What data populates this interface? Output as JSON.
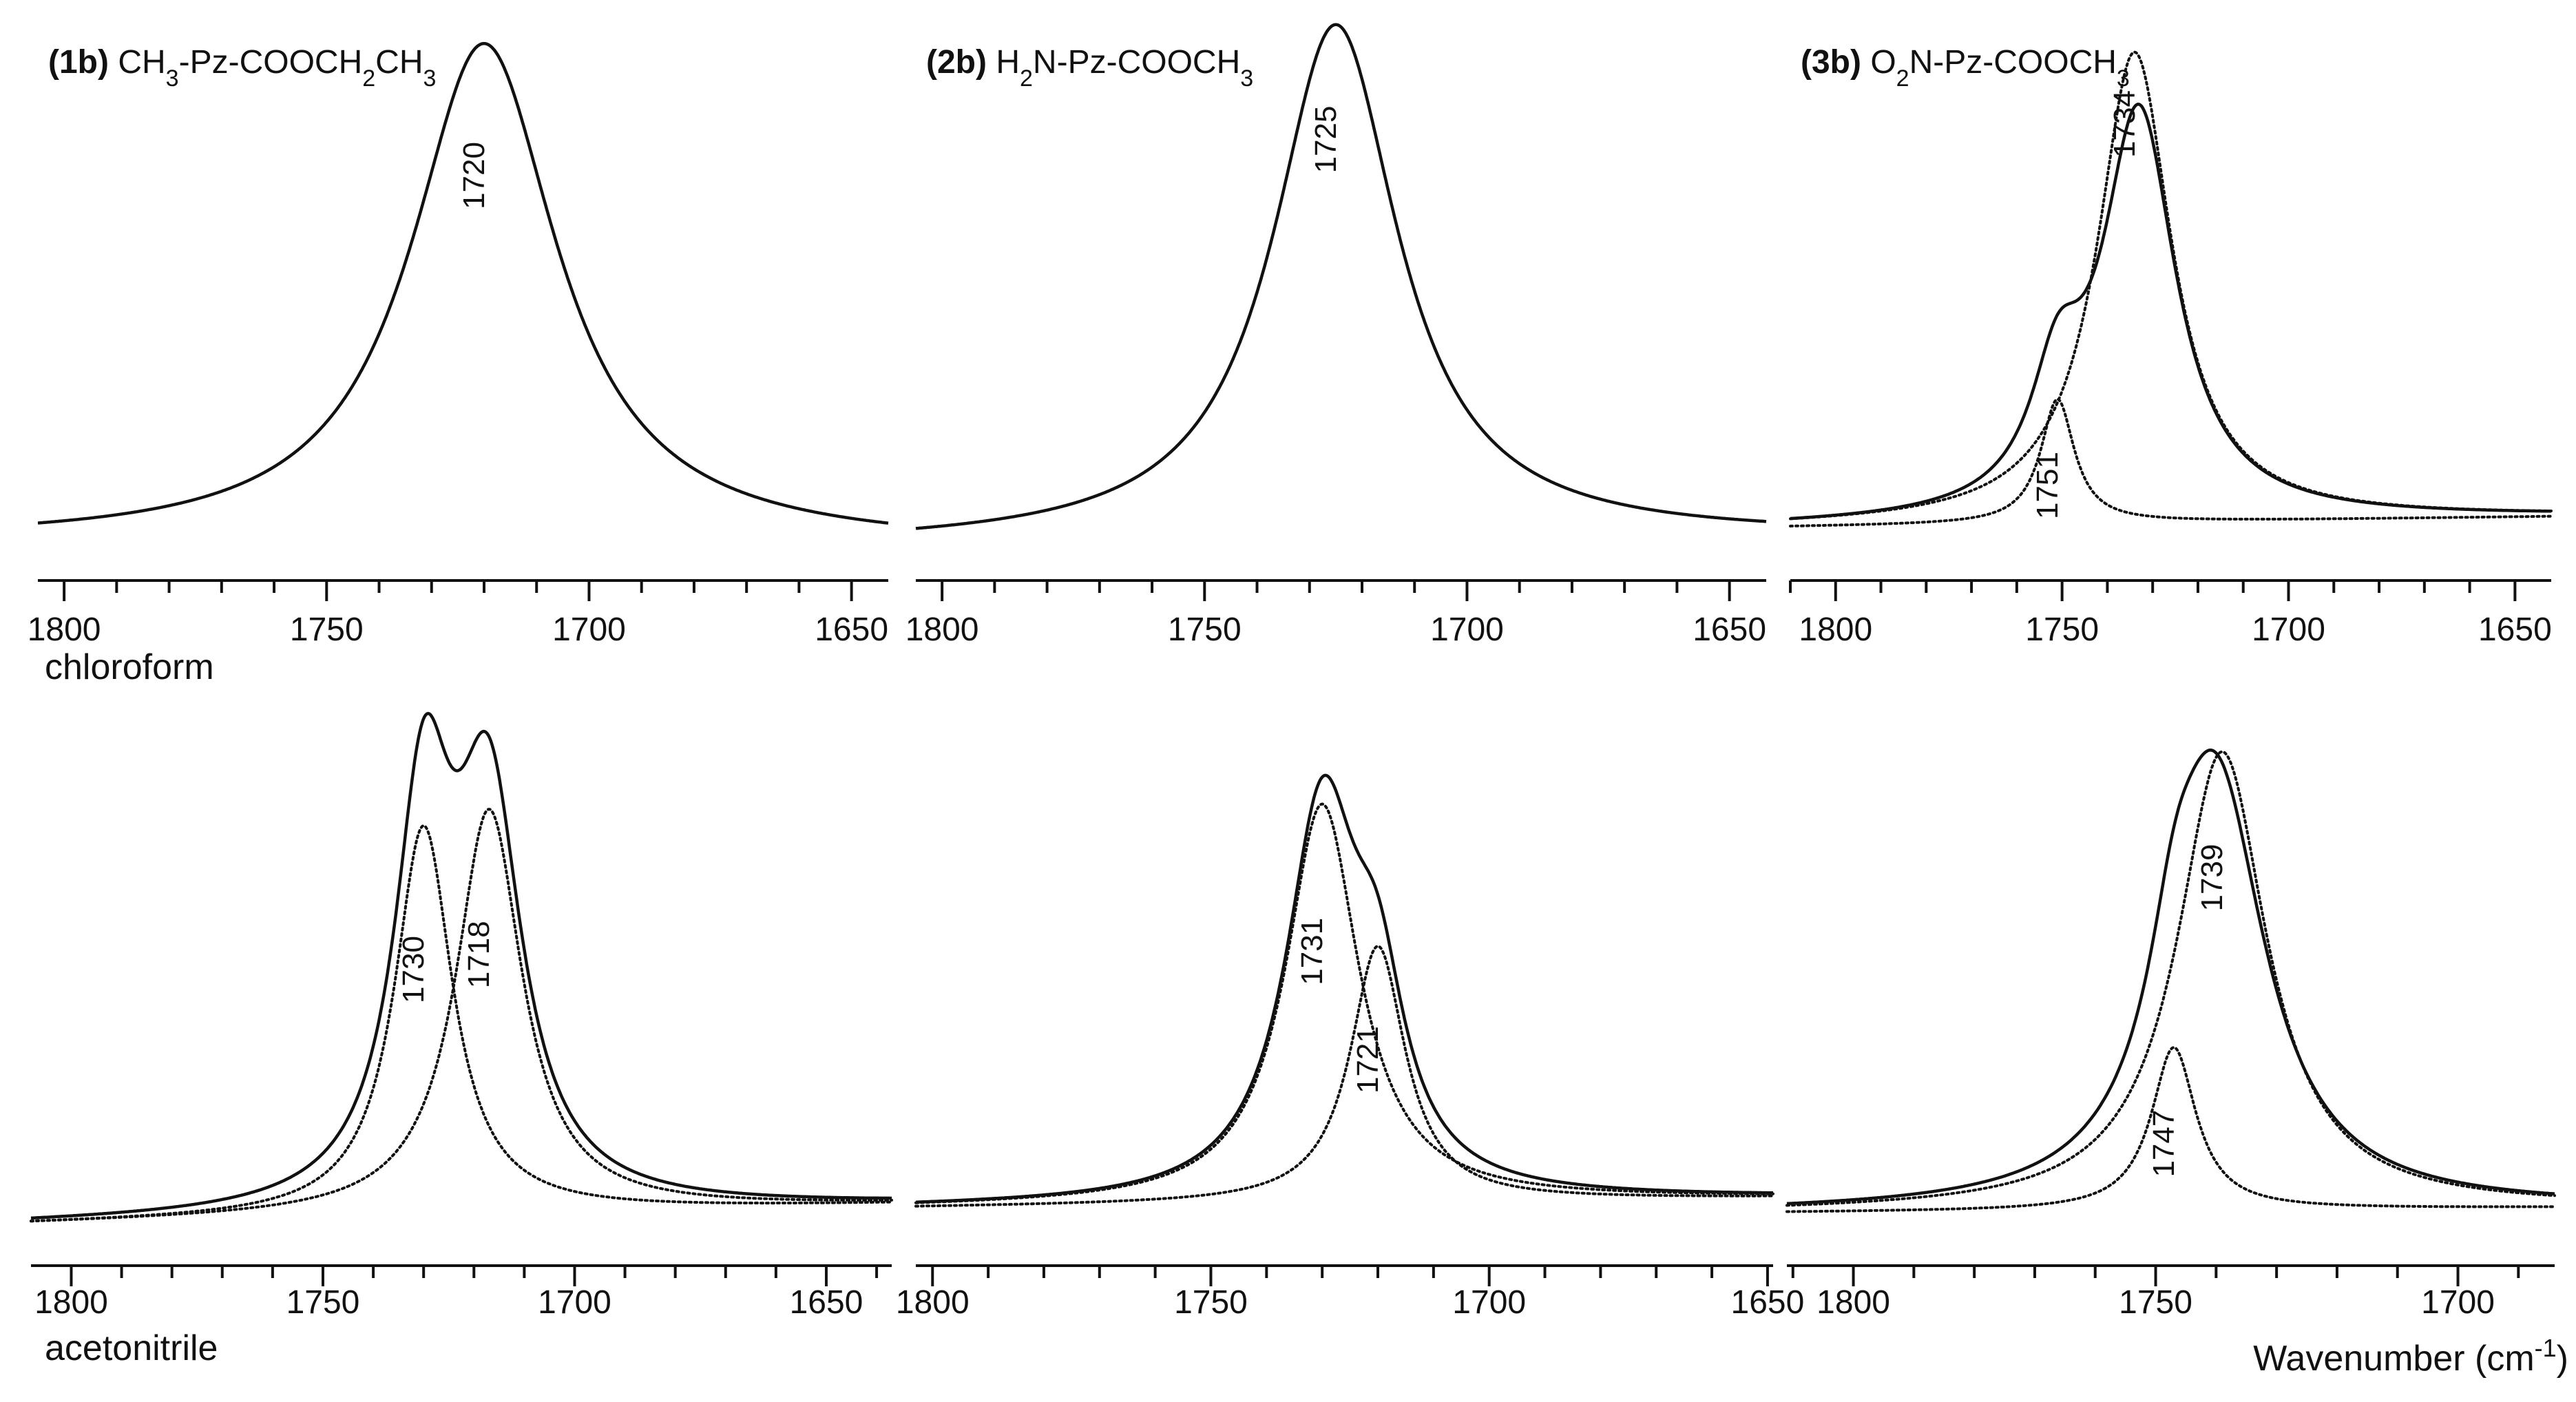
{
  "figure": {
    "row_labels": [
      "chloroform",
      "acetonitrile"
    ],
    "xaxis_label": "Wavenumber (cm",
    "xaxis_unit_sup": "-1",
    "xaxis_label_close": ")"
  },
  "chart_data": [
    {
      "type": "line",
      "row": "chloroform",
      "compound_id": "(1b)",
      "formula": [
        [
          "CH",
          ""
        ],
        [
          "3",
          "sub"
        ],
        [
          "-Pz-COOCH",
          ""
        ],
        [
          "2",
          "sub"
        ],
        [
          "CH",
          ""
        ],
        [
          "3",
          "sub"
        ]
      ],
      "xlim": [
        1805,
        1643
      ],
      "ticks": [
        1800,
        1750,
        1700,
        1650
      ],
      "baseline_left": 0.03,
      "baseline_right": 0.022,
      "series": [
        {
          "name": "spectrum",
          "style": "solid",
          "components": [
            {
              "center": 1720,
              "amp": 0.97,
              "width": 17
            }
          ]
        }
      ],
      "annotations": [
        {
          "text": "1720",
          "x": 1720,
          "y": 0.74
        }
      ]
    },
    {
      "type": "line",
      "row": "chloroform",
      "compound_id": "(2b)",
      "formula": [
        [
          "H",
          ""
        ],
        [
          "2",
          "sub"
        ],
        [
          "N-Pz-COOCH",
          ""
        ],
        [
          "3",
          "sub"
        ]
      ],
      "xlim": [
        1805,
        1643
      ],
      "ticks": [
        1800,
        1750,
        1700,
        1650
      ],
      "baseline_left": 0.025,
      "baseline_right": 0.04,
      "series": [
        {
          "name": "spectrum",
          "style": "solid",
          "components": [
            {
              "center": 1725,
              "amp": 1.0,
              "width": 14.5
            }
          ]
        }
      ],
      "annotations": [
        {
          "text": "1725",
          "x": 1725,
          "y": 0.81
        }
      ]
    },
    {
      "type": "line",
      "row": "chloroform",
      "compound_id": "(3b)",
      "formula": [
        [
          "O",
          ""
        ],
        [
          "2",
          "sub"
        ],
        [
          "N-Pz-COOCH",
          ""
        ],
        [
          "3",
          "sub"
        ]
      ],
      "xlim": [
        1810,
        1642
      ],
      "ticks": [
        1800,
        1750,
        1700,
        1650
      ],
      "baseline_left": 0.06,
      "baseline_right": 0.08,
      "series": [
        {
          "name": "sum",
          "style": "solid",
          "components": [
            {
              "center": 1733,
              "amp": 0.78,
              "width": 10
            },
            {
              "center": 1751,
              "amp": 0.22,
              "width": 7
            }
          ]
        },
        {
          "name": "component 1734",
          "style": "dotted",
          "components": [
            {
              "center": 1734,
              "amp": 0.91,
              "width": 10
            }
          ]
        },
        {
          "name": "component 1751",
          "style": "dotted",
          "components": [
            {
              "center": 1751,
              "amp": 0.24,
              "width": 4.5
            }
          ]
        }
      ],
      "annotations": [
        {
          "text": "1734",
          "x": 1734,
          "y": 0.84
        },
        {
          "text": "1751",
          "x": 1751,
          "y": 0.14
        }
      ]
    },
    {
      "type": "line",
      "row": "acetonitrile",
      "compound_id": "(1b)",
      "xlim": [
        1808,
        1637
      ],
      "ticks": [
        1800,
        1750,
        1700,
        1650
      ],
      "baseline_left": 0.01,
      "baseline_right": 0.05,
      "series": [
        {
          "name": "sum",
          "style": "solid",
          "components": [
            {
              "center": 1730,
              "amp": 0.78,
              "width": 7
            },
            {
              "center": 1717,
              "amp": 0.78,
              "width": 8
            }
          ]
        },
        {
          "name": "component 1730",
          "style": "dotted",
          "components": [
            {
              "center": 1730,
              "amp": 0.78,
              "width": 7
            }
          ]
        },
        {
          "name": "component 1718",
          "style": "dotted",
          "components": [
            {
              "center": 1717,
              "amp": 0.81,
              "width": 8
            }
          ]
        }
      ],
      "annotations": [
        {
          "text": "1730",
          "x": 1730,
          "y": 0.52
        },
        {
          "text": "1718",
          "x": 1717,
          "y": 0.55
        }
      ]
    },
    {
      "type": "line",
      "row": "acetonitrile",
      "compound_id": "(2b)",
      "xlim": [
        1803,
        1649
      ],
      "ticks": [
        1800,
        1750,
        1700,
        1650
      ],
      "baseline_left": 0.03,
      "baseline_right": 0.05,
      "series": [
        {
          "name": "sum",
          "style": "solid",
          "components": [
            {
              "center": 1730,
              "amp": 0.78,
              "width": 8
            },
            {
              "center": 1720,
              "amp": 0.32,
              "width": 6
            }
          ]
        },
        {
          "name": "component 1731",
          "style": "dotted",
          "components": [
            {
              "center": 1730,
              "amp": 0.81,
              "width": 8
            }
          ]
        },
        {
          "name": "component 1721",
          "style": "dotted",
          "components": [
            {
              "center": 1720,
              "amp": 0.52,
              "width": 6
            }
          ]
        }
      ],
      "annotations": [
        {
          "text": "1731",
          "x": 1730,
          "y": 0.55
        },
        {
          "text": "1721",
          "x": 1720,
          "y": 0.33
        }
      ]
    },
    {
      "type": "line",
      "row": "acetonitrile",
      "compound_id": "(3b)",
      "xlim": [
        1811,
        1684
      ],
      "ticks": [
        1800,
        1750,
        1700
      ],
      "baseline_left": 0.02,
      "baseline_right": 0.03,
      "series": [
        {
          "name": "sum",
          "style": "solid",
          "components": [
            {
              "center": 1740,
              "amp": 0.86,
              "width": 10
            },
            {
              "center": 1747,
              "amp": 0.2,
              "width": 5
            }
          ]
        },
        {
          "name": "component 1739",
          "style": "dotted",
          "components": [
            {
              "center": 1739,
              "amp": 0.93,
              "width": 9
            }
          ]
        },
        {
          "name": "component 1747",
          "style": "dotted",
          "components": [
            {
              "center": 1747,
              "amp": 0.33,
              "width": 4.5
            }
          ]
        }
      ],
      "annotations": [
        {
          "text": "1739",
          "x": 1739,
          "y": 0.7
        },
        {
          "text": "1747",
          "x": 1747,
          "y": 0.16
        }
      ]
    }
  ]
}
